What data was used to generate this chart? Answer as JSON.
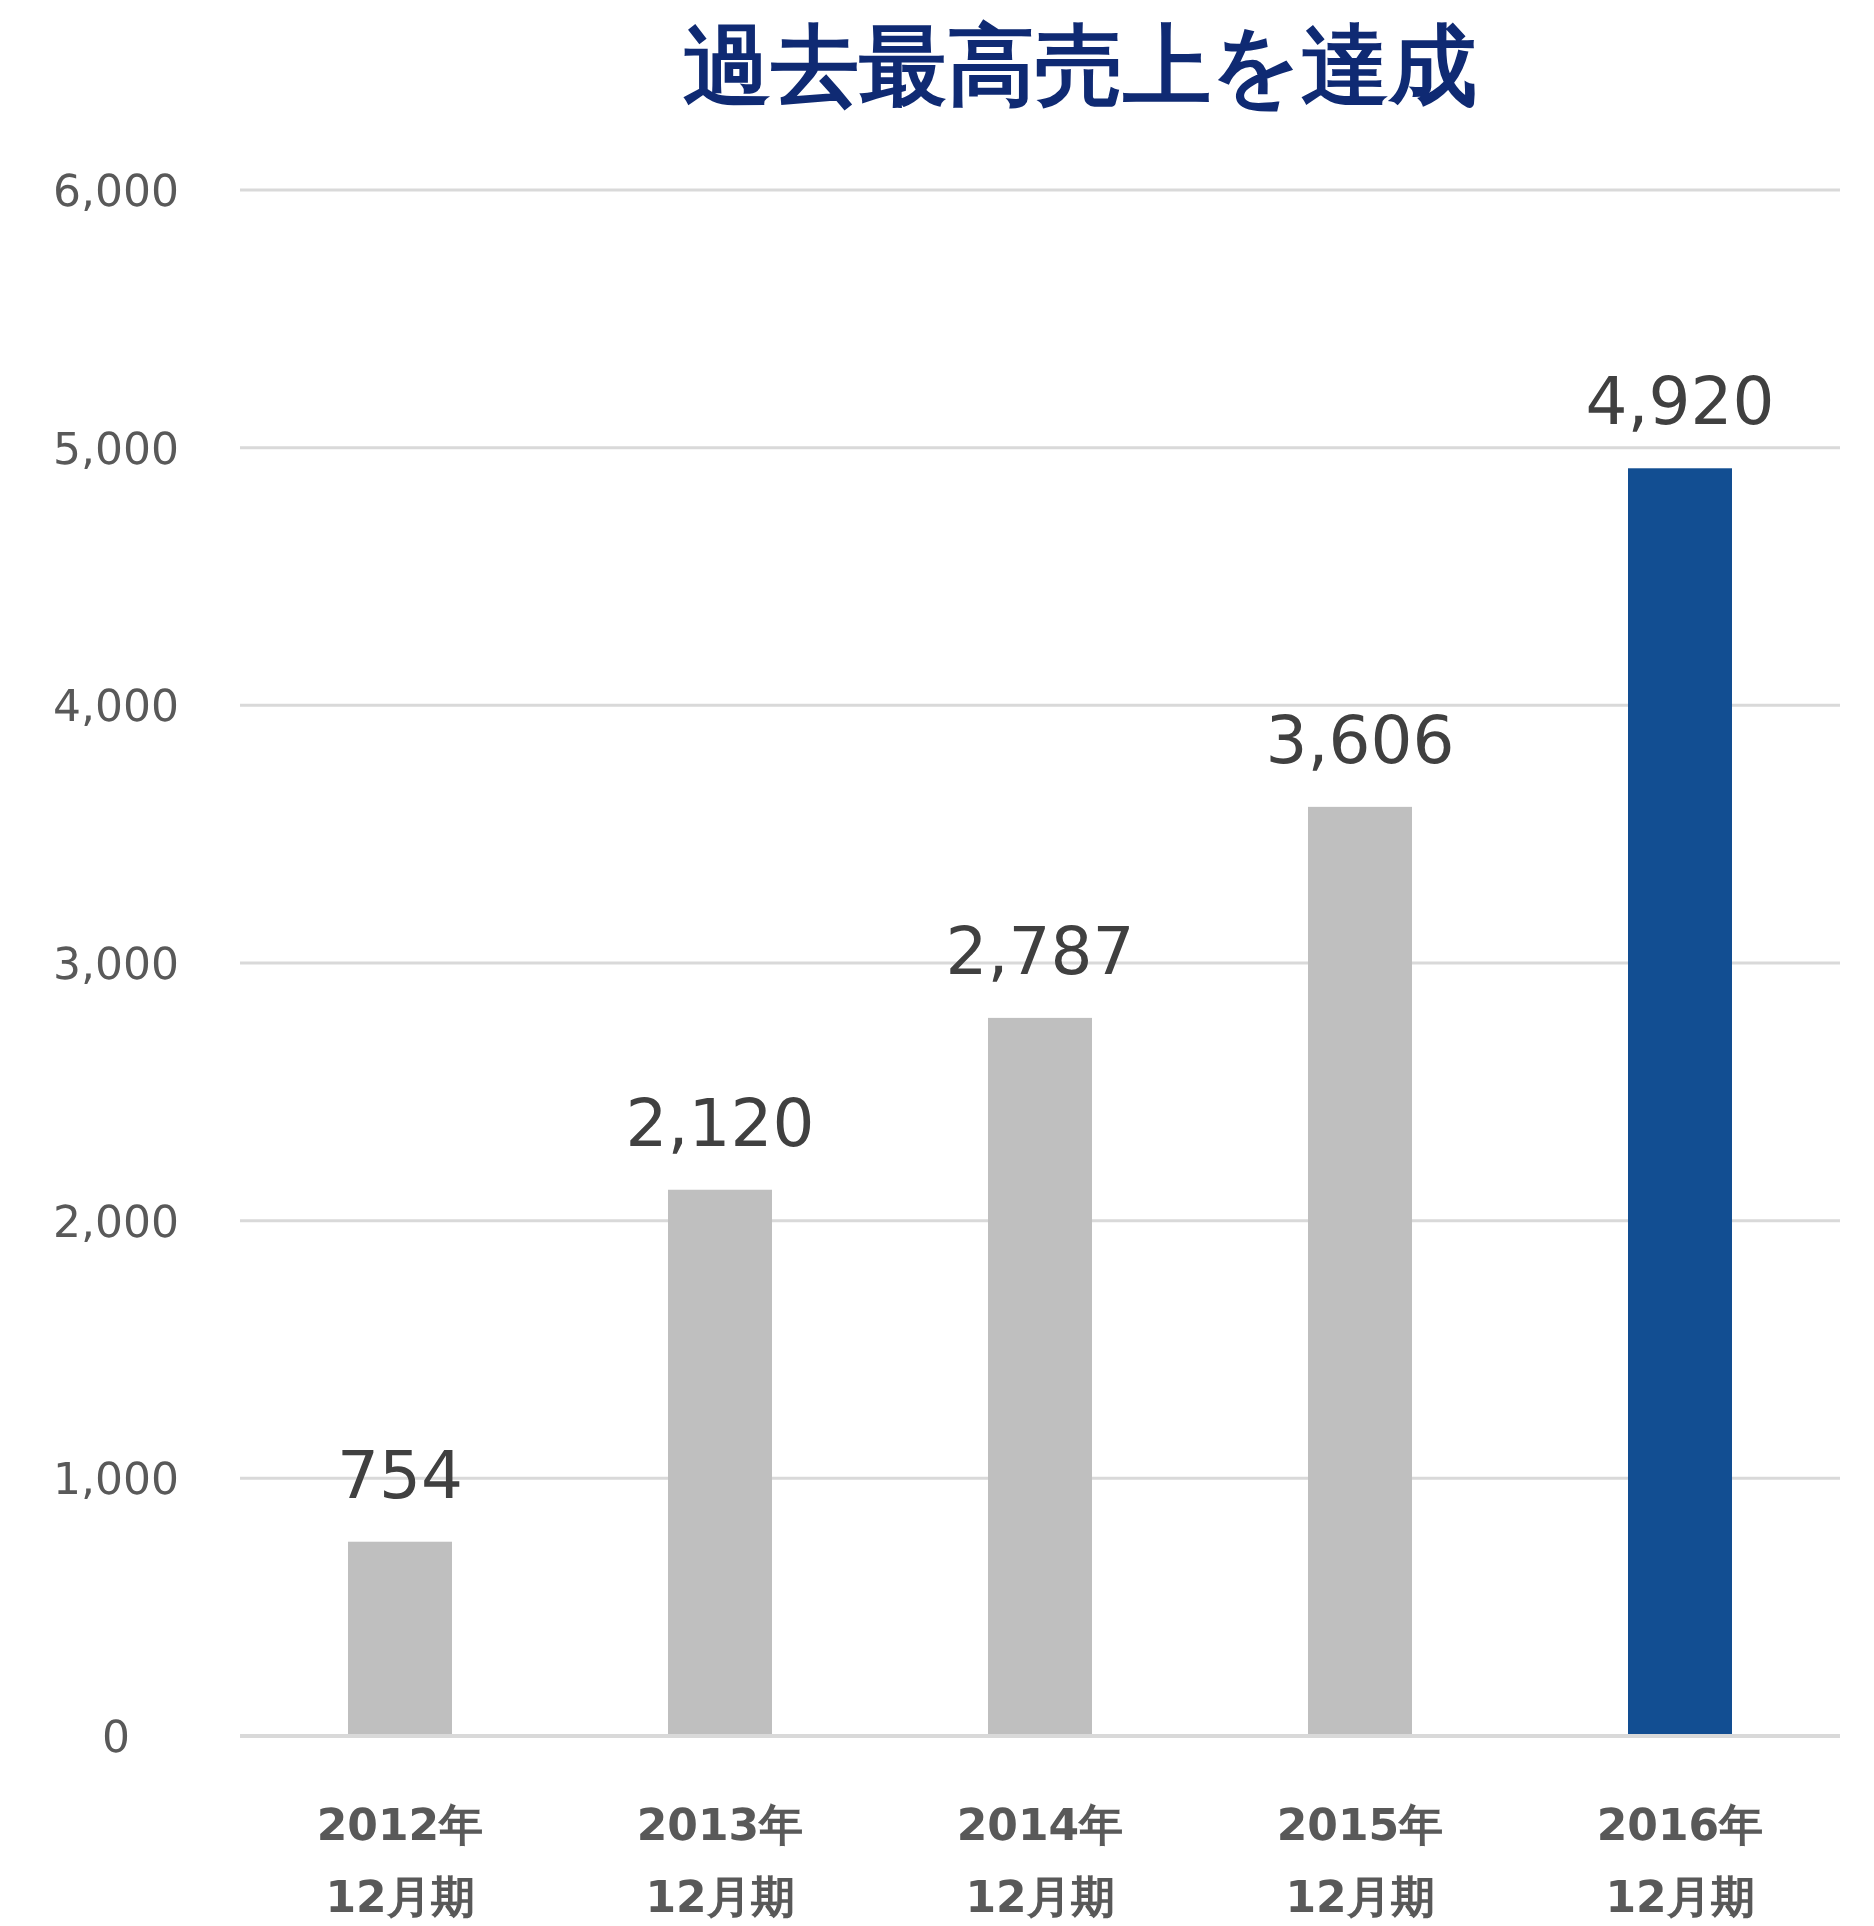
{
  "chart_data": {
    "type": "bar",
    "title": "過去最高売上を達成",
    "categories": [
      "2012年 12月期",
      "2013年 12月期",
      "2014年 12月期",
      "2015年 12月期",
      "2016年 12月期"
    ],
    "values": [
      754,
      2120,
      2787,
      3606,
      4920
    ],
    "colors": [
      "#bfbfbf",
      "#bfbfbf",
      "#bfbfbf",
      "#bfbfbf",
      "#124e92"
    ],
    "ylim": [
      0,
      6000
    ],
    "yticks": [
      {
        "value": 0,
        "label": "0"
      },
      {
        "value": 1000,
        "label": "1,000"
      },
      {
        "value": 2000,
        "label": "2,000"
      },
      {
        "value": 3000,
        "label": "3,000"
      },
      {
        "value": 4000,
        "label": "4,000"
      },
      {
        "value": 5000,
        "label": "5,000"
      },
      {
        "value": 6000,
        "label": "6,000"
      }
    ],
    "value_labels": [
      "754",
      "2,120",
      "2,787",
      "3,606",
      "4,920"
    ],
    "grid": "y"
  }
}
